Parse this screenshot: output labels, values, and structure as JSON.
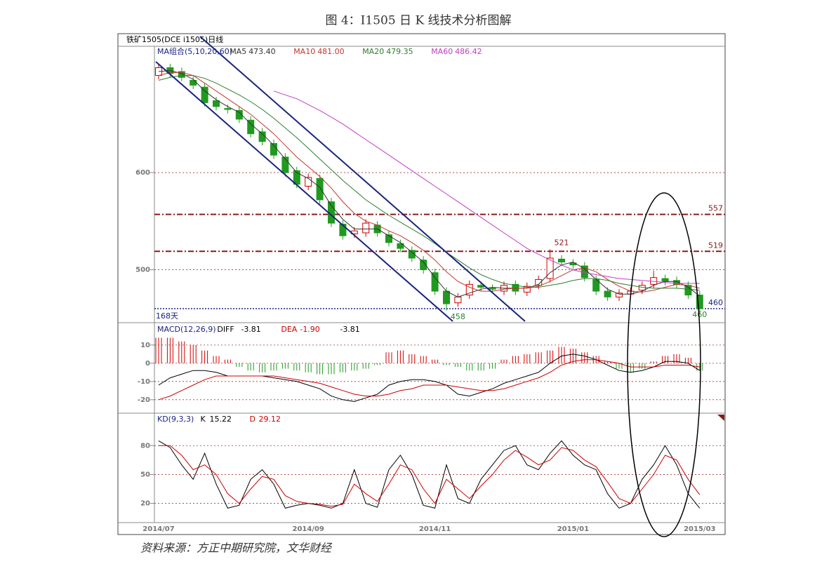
{
  "title": "图 4：I1505 日 K 线技术分析图解",
  "header": "铁矿1505(DCE i1505)日线",
  "source": "资料来源：方正中期研究院，文华财经",
  "chart_data": [
    {
      "type": "candlestick",
      "legend_title": "MA组合(5,10,20,60)",
      "days_label": "168天",
      "categories": [
        "2014/07",
        null,
        null,
        null,
        null,
        null,
        null,
        null,
        null,
        null,
        null,
        null,
        null,
        "2014/09",
        null,
        null,
        null,
        null,
        null,
        null,
        null,
        null,
        null,
        null,
        "2014/11",
        null,
        null,
        null,
        null,
        null,
        null,
        null,
        null,
        null,
        null,
        null,
        "2015/01",
        null,
        null,
        null,
        null,
        null,
        null,
        null,
        null,
        null,
        null,
        "2015/03"
      ],
      "open": [
        700,
        708,
        704,
        695,
        688,
        674,
        666,
        664,
        654,
        642,
        630,
        616,
        602,
        586,
        594,
        570,
        547,
        537,
        538,
        546,
        536,
        527,
        520,
        510,
        497,
        478,
        466,
        474,
        484,
        481,
        478,
        485,
        477,
        484,
        491,
        511,
        507,
        504,
        490,
        478,
        472,
        475,
        479,
        485,
        491,
        489,
        484,
        474
      ],
      "high": [
        712,
        712,
        708,
        699,
        692,
        678,
        670,
        668,
        658,
        646,
        634,
        620,
        606,
        599,
        598,
        574,
        551,
        544,
        552,
        550,
        540,
        531,
        524,
        514,
        501,
        482,
        476,
        489,
        488,
        485,
        488,
        489,
        487,
        494,
        521,
        515,
        511,
        508,
        494,
        482,
        480,
        482,
        488,
        499,
        495,
        493,
        488,
        478
      ],
      "low": [
        696,
        698,
        694,
        686,
        668,
        664,
        661,
        651,
        636,
        628,
        614,
        596,
        584,
        582,
        568,
        544,
        531,
        533,
        534,
        534,
        524,
        518,
        508,
        496,
        474,
        458,
        462,
        470,
        478,
        476,
        474,
        474,
        473,
        480,
        487,
        504,
        501,
        488,
        474,
        468,
        468,
        471,
        475,
        481,
        484,
        481,
        470,
        455
      ],
      "close": [
        708,
        702,
        698,
        690,
        672,
        668,
        665,
        655,
        640,
        632,
        618,
        600,
        588,
        595,
        572,
        548,
        535,
        540,
        548,
        538,
        528,
        522,
        512,
        500,
        478,
        465,
        472,
        485,
        482,
        480,
        484,
        478,
        483,
        490,
        512,
        508,
        505,
        492,
        478,
        472,
        476,
        478,
        484,
        492,
        488,
        485,
        474,
        460
      ],
      "up_color": "#d00000",
      "down_color": "#1f9a1f",
      "series": [
        {
          "name": "MA5",
          "color": "#333333",
          "last_label": "473.40",
          "values": [
            704,
            705,
            702,
            696,
            684,
            675,
            668,
            662,
            650,
            640,
            628,
            614,
            600,
            594,
            585,
            566,
            552,
            542,
            542,
            542,
            535,
            528,
            518,
            508,
            492,
            478,
            472,
            476,
            480,
            482,
            481,
            481,
            481,
            485,
            497,
            505,
            508,
            501,
            490,
            480,
            475,
            475,
            478,
            484,
            488,
            488,
            482,
            473
          ]
        },
        {
          "name": "MA10",
          "color": "#c0392b",
          "last_label": "481.00",
          "values": [
            700,
            703,
            703,
            700,
            692,
            684,
            676,
            668,
            660,
            650,
            640,
            628,
            616,
            606,
            596,
            584,
            570,
            558,
            550,
            546,
            540,
            535,
            528,
            520,
            510,
            498,
            488,
            482,
            478,
            478,
            480,
            481,
            481,
            483,
            488,
            494,
            500,
            502,
            498,
            490,
            483,
            478,
            477,
            479,
            482,
            485,
            484,
            481
          ]
        },
        {
          "name": "MA20",
          "color": "#2e7d32",
          "last_label": "479.35",
          "values": [
            695,
            698,
            700,
            700,
            697,
            692,
            686,
            680,
            673,
            665,
            656,
            646,
            636,
            625,
            614,
            603,
            592,
            582,
            572,
            564,
            556,
            549,
            542,
            535,
            527,
            518,
            510,
            502,
            495,
            490,
            486,
            484,
            482,
            482,
            484,
            486,
            489,
            491,
            491,
            489,
            486,
            484,
            482,
            481,
            481,
            481,
            480,
            479
          ]
        },
        {
          "name": "MA60",
          "color": "#c040c0",
          "last_label": "486.42",
          "values": [
            null,
            null,
            null,
            null,
            null,
            null,
            null,
            null,
            null,
            null,
            684,
            680,
            676,
            670,
            664,
            657,
            650,
            642,
            634,
            626,
            618,
            610,
            602,
            594,
            586,
            578,
            570,
            562,
            554,
            546,
            538,
            530,
            522,
            516,
            510,
            505,
            500,
            497,
            495,
            493,
            491,
            490,
            489,
            488,
            487,
            486,
            486,
            486
          ]
        }
      ],
      "ylim": [
        447,
        730
      ],
      "yticks": [
        600,
        500
      ],
      "grid": true,
      "hlines": [
        {
          "value": 557,
          "color": "#8b1a1a"
        },
        {
          "value": 519,
          "color": "#8b1a1a"
        },
        {
          "value": 460,
          "color": "#1a237e"
        }
      ],
      "annotations": [
        {
          "x": 35,
          "value": 521
        },
        {
          "x": 26,
          "value": 458
        },
        {
          "x": 47,
          "value": 460
        }
      ]
    },
    {
      "type": "macd",
      "legend_title": "MACD(12,26,9)",
      "histogram": {
        "last_label": "-3.81",
        "positive_color": "#d00000",
        "negative_color": "#1f9a1f",
        "values": [
          14,
          14,
          12,
          10,
          7,
          4,
          2,
          -2,
          -4,
          -5,
          -4,
          -3,
          -4,
          -5,
          -6,
          -6,
          -5,
          -4,
          -3,
          -1,
          6,
          7,
          5,
          4,
          2,
          -1,
          -2,
          -4,
          -4,
          -3,
          2,
          4,
          5,
          6,
          7,
          9,
          8,
          6,
          4,
          1,
          -3,
          -5,
          -3,
          1,
          4,
          5,
          3,
          -4
        ]
      },
      "series": [
        {
          "name": "DIFF",
          "color": "#000000",
          "last_label": "-3.81",
          "values": [
            -12,
            -8,
            -6,
            -4,
            -4,
            -5,
            -7,
            -7,
            -7,
            -7,
            -8,
            -9,
            -10,
            -12,
            -14,
            -18,
            -20,
            -21,
            -19,
            -17,
            -12,
            -10,
            -9,
            -9,
            -10,
            -12,
            -17,
            -18,
            -16,
            -14,
            -11,
            -9,
            -7,
            -5,
            0,
            4,
            5,
            4,
            2,
            -1,
            -4,
            -5,
            -4,
            -2,
            1,
            1,
            0,
            -4
          ]
        },
        {
          "name": "DEA",
          "color": "#cc0000",
          "last_label": "-1.90",
          "values": [
            -20,
            -18,
            -15,
            -12,
            -9,
            -7,
            -7,
            -7,
            -7,
            -7,
            -7,
            -8,
            -9,
            -10,
            -11,
            -13,
            -15,
            -17,
            -18,
            -18,
            -17,
            -15,
            -14,
            -12,
            -12,
            -12,
            -13,
            -14,
            -15,
            -15,
            -14,
            -12,
            -10,
            -8,
            -5,
            -1,
            1,
            2,
            2,
            1,
            0,
            -2,
            -2,
            -2,
            -1,
            -1,
            -1,
            -2
          ]
        }
      ],
      "ylim": [
        -27,
        21.5
      ],
      "yticks": [
        10,
        0,
        -10,
        -20
      ],
      "grid": true
    },
    {
      "type": "kd",
      "legend_title": "KD(9,3,3)",
      "series": [
        {
          "name": "K",
          "color": "#000000",
          "last_label": "15.22",
          "values": [
            85,
            78,
            60,
            45,
            72,
            40,
            15,
            18,
            45,
            55,
            40,
            15,
            18,
            20,
            18,
            15,
            20,
            55,
            20,
            16,
            55,
            70,
            50,
            18,
            15,
            60,
            25,
            20,
            45,
            60,
            75,
            80,
            60,
            55,
            72,
            85,
            70,
            60,
            55,
            30,
            15,
            20,
            45,
            60,
            80,
            60,
            30,
            15
          ]
        },
        {
          "name": "D",
          "color": "#cc0000",
          "last_label": "29.12",
          "values": [
            80,
            80,
            70,
            55,
            60,
            50,
            30,
            20,
            35,
            48,
            45,
            28,
            22,
            20,
            19,
            17,
            19,
            40,
            30,
            22,
            40,
            60,
            55,
            35,
            20,
            45,
            35,
            25,
            38,
            50,
            65,
            75,
            68,
            60,
            65,
            78,
            75,
            65,
            58,
            42,
            25,
            20,
            35,
            50,
            70,
            65,
            45,
            29
          ]
        }
      ],
      "ylim": [
        0,
        113
      ],
      "yticks": [
        80,
        50,
        20
      ],
      "grid": true
    }
  ]
}
